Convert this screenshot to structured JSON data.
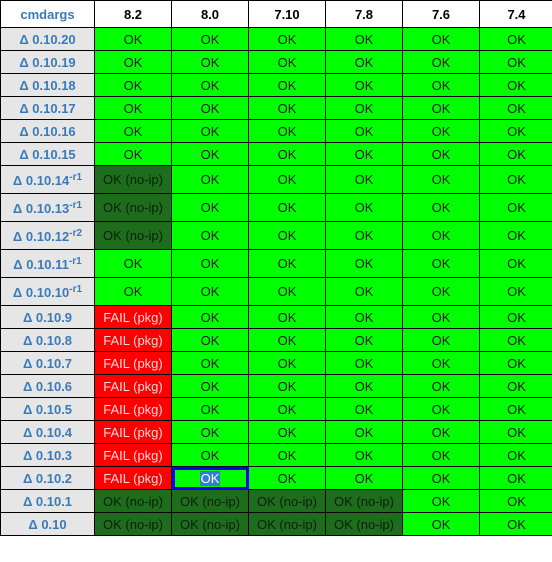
{
  "header": {
    "corner": "cmdargs",
    "versions": [
      "8.2",
      "8.0",
      "7.10",
      "7.8",
      "7.6",
      "7.4"
    ]
  },
  "status_colors": {
    "ok": "#00ff00",
    "ok_no_ip": "#1d6d1d",
    "fail": "#ff0000",
    "selected_outline": "#0000ff"
  },
  "rows": [
    {
      "label": "Δ 0.10.20",
      "sup": "",
      "cells": [
        "OK",
        "OK",
        "OK",
        "OK",
        "OK",
        "OK"
      ]
    },
    {
      "label": "Δ 0.10.19",
      "sup": "",
      "cells": [
        "OK",
        "OK",
        "OK",
        "OK",
        "OK",
        "OK"
      ]
    },
    {
      "label": "Δ 0.10.18",
      "sup": "",
      "cells": [
        "OK",
        "OK",
        "OK",
        "OK",
        "OK",
        "OK"
      ]
    },
    {
      "label": "Δ 0.10.17",
      "sup": "",
      "cells": [
        "OK",
        "OK",
        "OK",
        "OK",
        "OK",
        "OK"
      ]
    },
    {
      "label": "Δ 0.10.16",
      "sup": "",
      "cells": [
        "OK",
        "OK",
        "OK",
        "OK",
        "OK",
        "OK"
      ]
    },
    {
      "label": "Δ 0.10.15",
      "sup": "",
      "cells": [
        "OK",
        "OK",
        "OK",
        "OK",
        "OK",
        "OK"
      ]
    },
    {
      "label": "Δ 0.10.14",
      "sup": "-r1",
      "cells": [
        "OK (no-ip)",
        "OK",
        "OK",
        "OK",
        "OK",
        "OK"
      ]
    },
    {
      "label": "Δ 0.10.13",
      "sup": "-r1",
      "cells": [
        "OK (no-ip)",
        "OK",
        "OK",
        "OK",
        "OK",
        "OK"
      ]
    },
    {
      "label": "Δ 0.10.12",
      "sup": "-r2",
      "cells": [
        "OK (no-ip)",
        "OK",
        "OK",
        "OK",
        "OK",
        "OK"
      ]
    },
    {
      "label": "Δ 0.10.11",
      "sup": "-r1",
      "cells": [
        "OK",
        "OK",
        "OK",
        "OK",
        "OK",
        "OK"
      ]
    },
    {
      "label": "Δ 0.10.10",
      "sup": "-r1",
      "cells": [
        "OK",
        "OK",
        "OK",
        "OK",
        "OK",
        "OK"
      ]
    },
    {
      "label": "Δ 0.10.9",
      "sup": "",
      "cells": [
        "FAIL (pkg)",
        "OK",
        "OK",
        "OK",
        "OK",
        "OK"
      ]
    },
    {
      "label": "Δ 0.10.8",
      "sup": "",
      "cells": [
        "FAIL (pkg)",
        "OK",
        "OK",
        "OK",
        "OK",
        "OK"
      ]
    },
    {
      "label": "Δ 0.10.7",
      "sup": "",
      "cells": [
        "FAIL (pkg)",
        "OK",
        "OK",
        "OK",
        "OK",
        "OK"
      ]
    },
    {
      "label": "Δ 0.10.6",
      "sup": "",
      "cells": [
        "FAIL (pkg)",
        "OK",
        "OK",
        "OK",
        "OK",
        "OK"
      ]
    },
    {
      "label": "Δ 0.10.5",
      "sup": "",
      "cells": [
        "FAIL (pkg)",
        "OK",
        "OK",
        "OK",
        "OK",
        "OK"
      ]
    },
    {
      "label": "Δ 0.10.4",
      "sup": "",
      "cells": [
        "FAIL (pkg)",
        "OK",
        "OK",
        "OK",
        "OK",
        "OK"
      ]
    },
    {
      "label": "Δ 0.10.3",
      "sup": "",
      "cells": [
        "FAIL (pkg)",
        "OK",
        "OK",
        "OK",
        "OK",
        "OK"
      ]
    },
    {
      "label": "Δ 0.10.2",
      "sup": "",
      "cells": [
        "FAIL (pkg)",
        "OK",
        "OK",
        "OK",
        "OK",
        "OK"
      ]
    },
    {
      "label": "Δ 0.10.1",
      "sup": "",
      "cells": [
        "OK (no-ip)",
        "OK (no-ip)",
        "OK (no-ip)",
        "OK (no-ip)",
        "OK",
        "OK"
      ]
    },
    {
      "label": "Δ 0.10",
      "sup": "",
      "cells": [
        "OK (no-ip)",
        "OK (no-ip)",
        "OK (no-ip)",
        "OK (no-ip)",
        "OK",
        "OK"
      ]
    }
  ],
  "selected_cell": {
    "row_label": "Δ 0.10.2",
    "version": "8.0"
  }
}
